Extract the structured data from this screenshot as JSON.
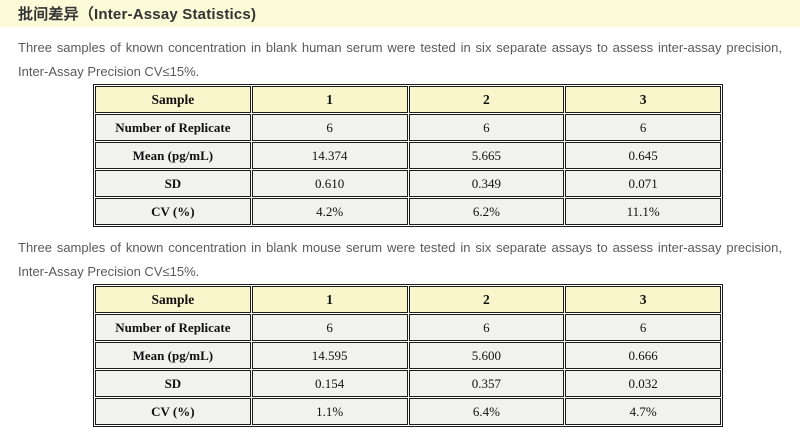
{
  "header": {
    "title": "批间差异（Inter-Assay Statistics)"
  },
  "sections": [
    {
      "description": "Three samples of known concentration in blank human serum were tested in six separate assays to assess inter-assay precision, Inter-Assay Precision CV≤15%.",
      "table": {
        "columns": [
          "Sample",
          "1",
          "2",
          "3"
        ],
        "rows": [
          {
            "label": "Number of Replicate",
            "values": [
              "6",
              "6",
              "6"
            ]
          },
          {
            "label": "Mean (pg/mL)",
            "values": [
              "14.374",
              "5.665",
              "0.645"
            ]
          },
          {
            "label": "SD",
            "values": [
              "0.610",
              "0.349",
              "0.071"
            ]
          },
          {
            "label": "CV (%)",
            "values": [
              "4.2%",
              "6.2%",
              "11.1%"
            ]
          }
        ]
      }
    },
    {
      "description": "Three samples of known concentration in blank mouse serum were tested in six separate assays to assess inter-assay precision, Inter-Assay Precision CV≤15%.",
      "table": {
        "columns": [
          "Sample",
          "1",
          "2",
          "3"
        ],
        "rows": [
          {
            "label": "Number of Replicate",
            "values": [
              "6",
              "6",
              "6"
            ]
          },
          {
            "label": "Mean (pg/mL)",
            "values": [
              "14.595",
              "5.600",
              "0.666"
            ]
          },
          {
            "label": "SD",
            "values": [
              "0.154",
              "0.357",
              "0.032"
            ]
          },
          {
            "label": "CV (%)",
            "values": [
              "1.1%",
              "6.4%",
              "4.7%"
            ]
          }
        ]
      }
    }
  ],
  "colors": {
    "title_bar_bg": "#FCFBD8",
    "table_header_bg": "#FAF6CB",
    "table_row_bg": "#F1F1EE",
    "table_border": "#1C1C1C",
    "title_text": "#333333",
    "body_text": "#5A5A5A"
  }
}
